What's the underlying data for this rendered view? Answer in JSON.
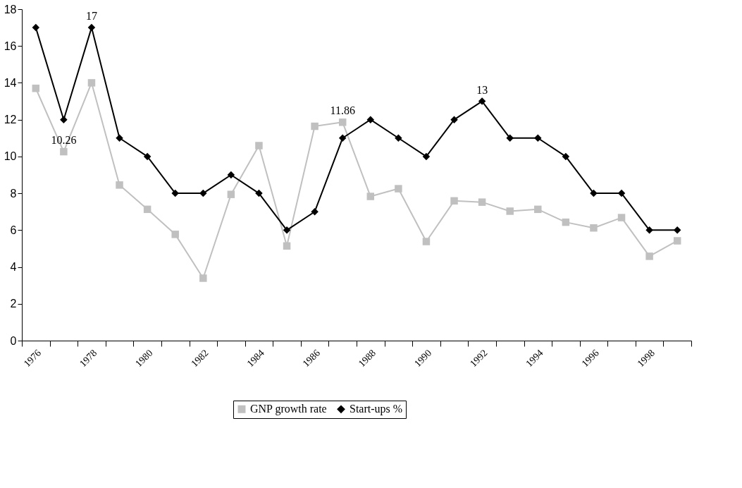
{
  "chart_data": {
    "type": "line",
    "categories": [
      "1976",
      null,
      "1978",
      null,
      "1980",
      null,
      "1982",
      null,
      "1984",
      null,
      "1986",
      null,
      "1988",
      null,
      "1990",
      null,
      "1992",
      null,
      "1994",
      null,
      "1996",
      null,
      "1998",
      null
    ],
    "series": [
      {
        "name": "GNP growth rate",
        "color": "#c0c0c0",
        "marker": "square",
        "values": [
          13.7,
          10.26,
          14.0,
          8.45,
          7.13,
          5.77,
          3.39,
          7.94,
          10.59,
          5.14,
          11.64,
          11.86,
          7.83,
          8.25,
          5.38,
          7.59,
          7.52,
          7.03,
          7.13,
          6.43,
          6.12,
          6.68,
          4.58,
          5.42
        ]
      },
      {
        "name": "Start-ups %",
        "color": "#000000",
        "marker": "diamond",
        "values": [
          17,
          12,
          17,
          11,
          10,
          8,
          8,
          9,
          8,
          6,
          7,
          11,
          12,
          11,
          10,
          12,
          13,
          11,
          11,
          10,
          8,
          8,
          6,
          6
        ]
      }
    ],
    "ylim": [
      0,
      18
    ],
    "yticks": [
      0,
      2,
      4,
      6,
      8,
      10,
      12,
      14,
      16,
      18
    ],
    "annotations": [
      {
        "text": "10.26",
        "y": 10.26
      },
      {
        "text": "17",
        "x": "1978",
        "y": 17
      },
      {
        "text": "11.86",
        "y": 11.86
      },
      {
        "text": "13",
        "x": "1992",
        "y": 13
      }
    ],
    "grid": false,
    "legend": "bottom",
    "line_style": "solid"
  }
}
